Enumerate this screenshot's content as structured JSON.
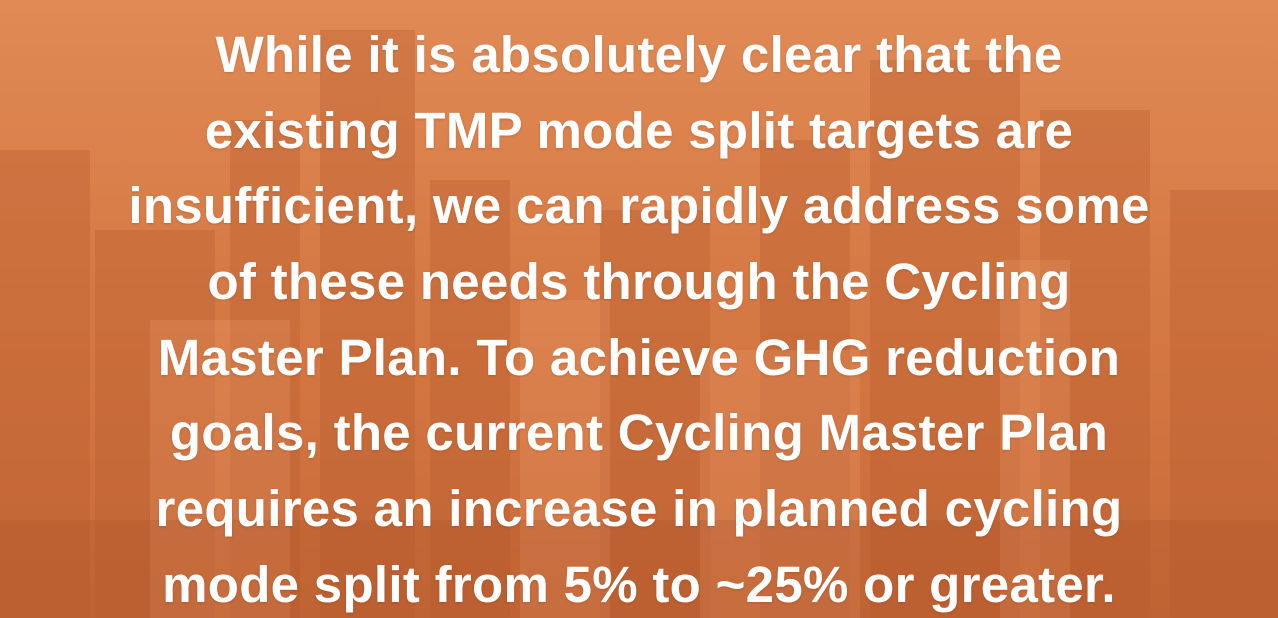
{
  "quote": {
    "lines": [
      "While it is absolutely clear that the",
      "existing TMP mode split targets are",
      "insufficient, we can rapidly address some",
      "of these needs through the Cycling",
      "Master Plan. To achieve GHG reduction",
      "goals, the current Cycling Master Plan",
      "requires an increase in planned cycling",
      "mode split from 5% to ~25% or greater."
    ]
  }
}
